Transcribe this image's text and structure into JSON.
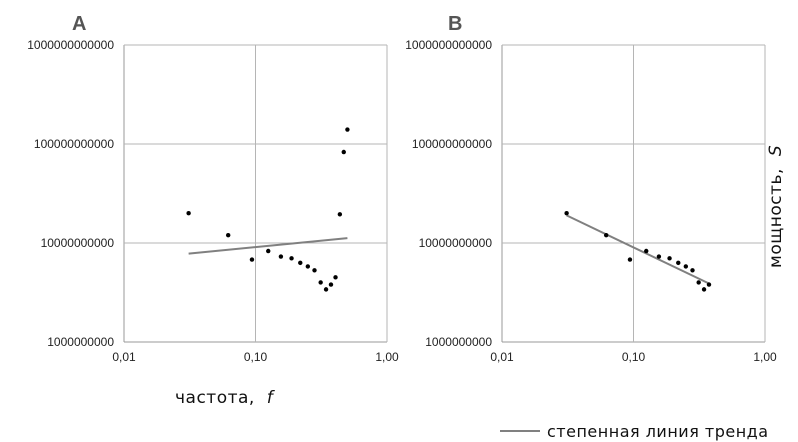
{
  "chart_data": [
    {
      "type": "scatter",
      "panel_label": "A",
      "xscale": "log",
      "yscale": "log",
      "xlim": [
        0.01,
        1.0
      ],
      "ylim": [
        1000000000,
        1000000000000
      ],
      "xticks": [
        "0,01",
        "0,10",
        "1,00"
      ],
      "yticks": [
        "1000000000000",
        "100000000000",
        "10000000000",
        "1000000000"
      ],
      "grid": true,
      "series": [
        {
          "kind": "points",
          "x": [
            0.031,
            0.062,
            0.094,
            0.125,
            0.156,
            0.188,
            0.219,
            0.25,
            0.281,
            0.313,
            0.344,
            0.375,
            0.406,
            0.438,
            0.469,
            0.5
          ],
          "y": [
            20000000000,
            12000000000,
            6800000000,
            8300000000,
            7300000000,
            7000000000,
            6300000000,
            5800000000,
            5300000000,
            4000000000,
            3400000000,
            3800000000,
            4500000000,
            19500000000,
            83000000000,
            140000000000
          ]
        },
        {
          "kind": "trendline",
          "x": [
            0.031,
            0.5
          ],
          "y": [
            7800000000,
            11200000000
          ]
        }
      ]
    },
    {
      "type": "scatter",
      "panel_label": "B",
      "xscale": "log",
      "yscale": "log",
      "xlim": [
        0.01,
        1.0
      ],
      "ylim": [
        1000000000,
        1000000000000
      ],
      "xticks": [
        "0,01",
        "0,10",
        "1,00"
      ],
      "yticks": [
        "1000000000000",
        "100000000000",
        "10000000000",
        "1000000000"
      ],
      "grid": true,
      "series": [
        {
          "kind": "points",
          "x": [
            0.031,
            0.062,
            0.094,
            0.125,
            0.156,
            0.188,
            0.219,
            0.25,
            0.281,
            0.313,
            0.344,
            0.375
          ],
          "y": [
            20000000000,
            12000000000,
            6800000000,
            8300000000,
            7300000000,
            7000000000,
            6300000000,
            5800000000,
            5300000000,
            4000000000,
            3400000000,
            3800000000
          ]
        },
        {
          "kind": "trendline",
          "x": [
            0.031,
            0.375
          ],
          "y": [
            19000000000,
            3900000000
          ]
        }
      ]
    }
  ],
  "xlabel": "частота,",
  "xlabel_symbol": "f",
  "ylabel": "мощность,",
  "ylabel_symbol": "S",
  "legend": {
    "label": "степенная линия тренда",
    "position": "bottom-right",
    "line_color": "#808080"
  },
  "colors": {
    "points": "#000000",
    "trend": "#808080",
    "grid": "#b5b5b5",
    "axis": "#999999"
  }
}
